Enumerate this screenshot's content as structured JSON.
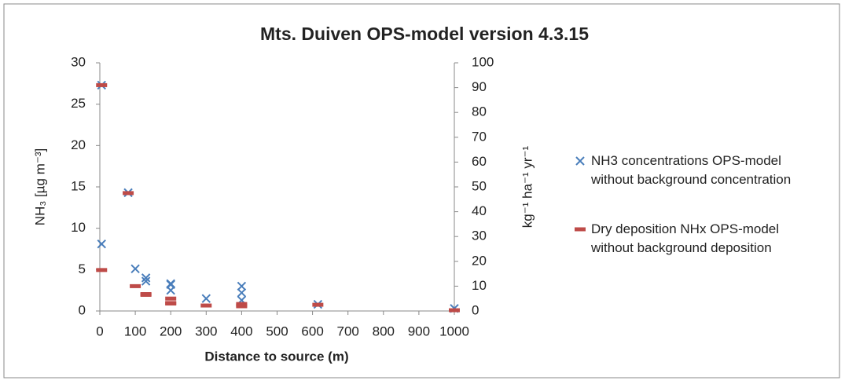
{
  "chart_data": {
    "type": "scatter",
    "title": "Mts. Duiven OPS-model version 4.3.15",
    "xlabel": "Distance to source (m)",
    "ylabel": "NH₃ [µg m⁻³]",
    "y2label": "kg⁻¹ ha⁻¹ yr⁻¹",
    "xlim": [
      0,
      1000
    ],
    "xticks": [
      0,
      100,
      200,
      300,
      400,
      500,
      600,
      700,
      800,
      900,
      1000
    ],
    "ylim": [
      0,
      30
    ],
    "yticks": [
      0,
      5,
      10,
      15,
      20,
      25,
      30
    ],
    "y2lim": [
      0,
      100
    ],
    "y2ticks": [
      0,
      10,
      20,
      30,
      40,
      50,
      60,
      70,
      80,
      90,
      100
    ],
    "legend": "right",
    "series": [
      {
        "name": "NH3 concentrations OPS-model without background concentration",
        "color": "#4a7ebb",
        "marker": "x",
        "x": [
          5,
          5,
          80,
          100,
          130,
          130,
          200,
          200,
          200,
          300,
          400,
          400,
          400,
          615,
          1000
        ],
        "values": [
          27.3,
          8.1,
          14.3,
          5.1,
          4.0,
          3.6,
          3.3,
          3.2,
          2.5,
          1.5,
          3.0,
          2.2,
          1.3,
          0.8,
          0.3
        ]
      },
      {
        "name": "Dry deposition NHx OPS-model without background deposition",
        "color": "#be4b48",
        "marker": "dash",
        "axis": "y2",
        "x": [
          5,
          5,
          80,
          100,
          130,
          130,
          200,
          200,
          200,
          300,
          400,
          400,
          400,
          615,
          1000
        ],
        "values": [
          91,
          16.5,
          47.5,
          10,
          6.8,
          6.5,
          5,
          3.2,
          3,
          2.2,
          2.8,
          2.2,
          1.9,
          2.5,
          0.3
        ]
      }
    ]
  }
}
